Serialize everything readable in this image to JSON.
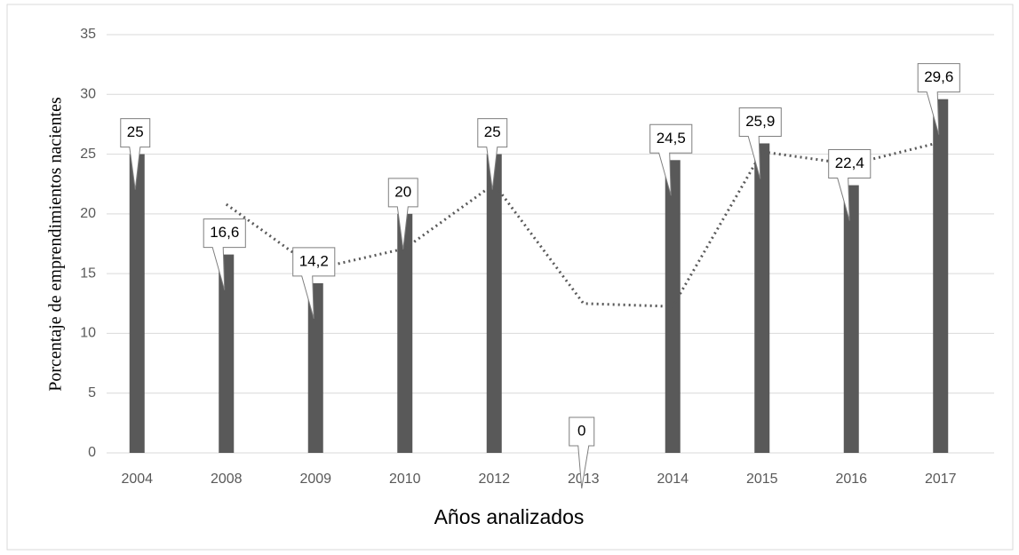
{
  "chart_data": {
    "type": "bar",
    "y_axis_label": "Porcentaje de emprendimientos nacientes",
    "x_axis_label": "Años analizados",
    "categories": [
      "2004",
      "2008",
      "2009",
      "2010",
      "2012",
      "2013",
      "2014",
      "2015",
      "2016",
      "2017"
    ],
    "values": [
      25,
      16.6,
      14.2,
      20,
      25,
      0,
      24.5,
      25.9,
      22.4,
      29.6
    ],
    "value_labels": [
      "25",
      "16,6",
      "14,2",
      "20",
      "25",
      "0",
      "24,5",
      "25,9",
      "22,4",
      "29,6"
    ],
    "color": "#595959",
    "trendline": {
      "color": "#595959",
      "style": "dotted",
      "values": [
        null,
        20.8,
        15.4,
        17.1,
        22.5,
        12.5,
        12.25,
        25.2,
        24.15,
        26
      ]
    },
    "ylim": [
      0,
      35
    ],
    "yticks": [
      0,
      5,
      10,
      15,
      20,
      25,
      30,
      35
    ],
    "grid": true
  }
}
